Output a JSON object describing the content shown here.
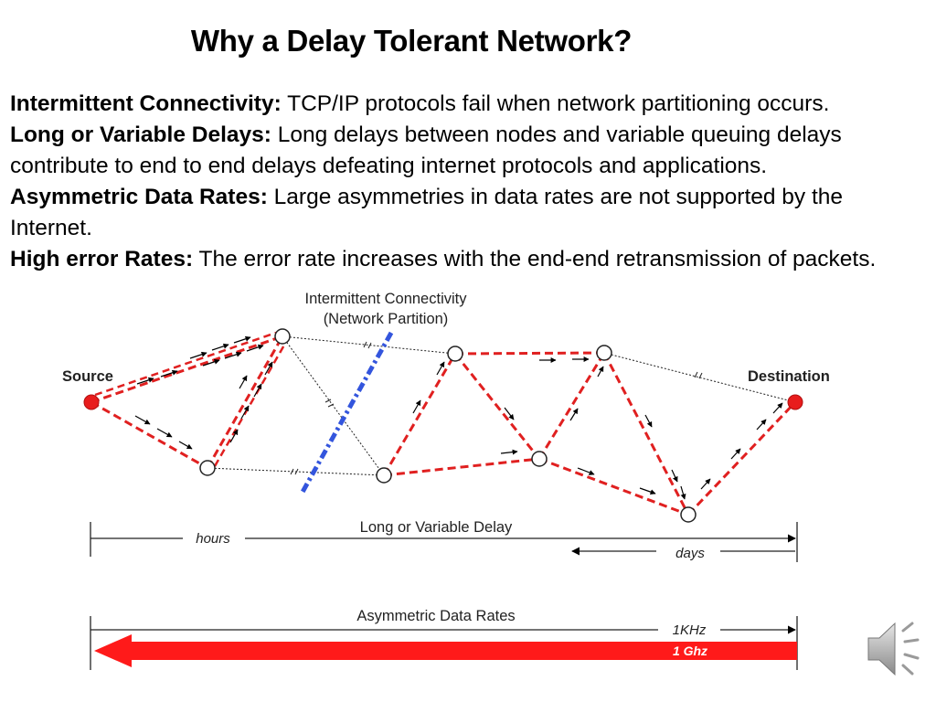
{
  "slide": {
    "title": "Why a Delay Tolerant Network?"
  },
  "bullets": [
    {
      "term": "Intermittent Connectivity:",
      "text": " TCP/IP  protocols fail when network partitioning occurs."
    },
    {
      "term": "Long or Variable Delays:",
      "text": " Long delays between nodes and variable queuing delays contribute to end to end delays defeating internet protocols and applications."
    },
    {
      "term": "Asymmetric Data Rates:",
      "text": " Large asymmetries in data rates are not supported by the Internet."
    },
    {
      "term": "High error Rates:",
      "text": " The error rate increases with the end-end retransmission of packets."
    }
  ],
  "diagram": {
    "partition_label_line1": "Intermittent Connectivity",
    "partition_label_line2": "(Network Partition)",
    "source_label": "Source",
    "destination_label": "Destination",
    "delay_label": "Long or Variable Delay",
    "hours_label": "hours",
    "days_label": "days",
    "asym_label": "Asymmetric Data Rates",
    "rate_low_label": "1KHz",
    "rate_high_label": "1 Ghz",
    "colors": {
      "path": "#e02020",
      "partition": "#3355dd",
      "endpoint": "#e81c1c",
      "wide_arrow": "#ff1a1a"
    }
  },
  "audio": {
    "icon": "speaker-icon"
  }
}
